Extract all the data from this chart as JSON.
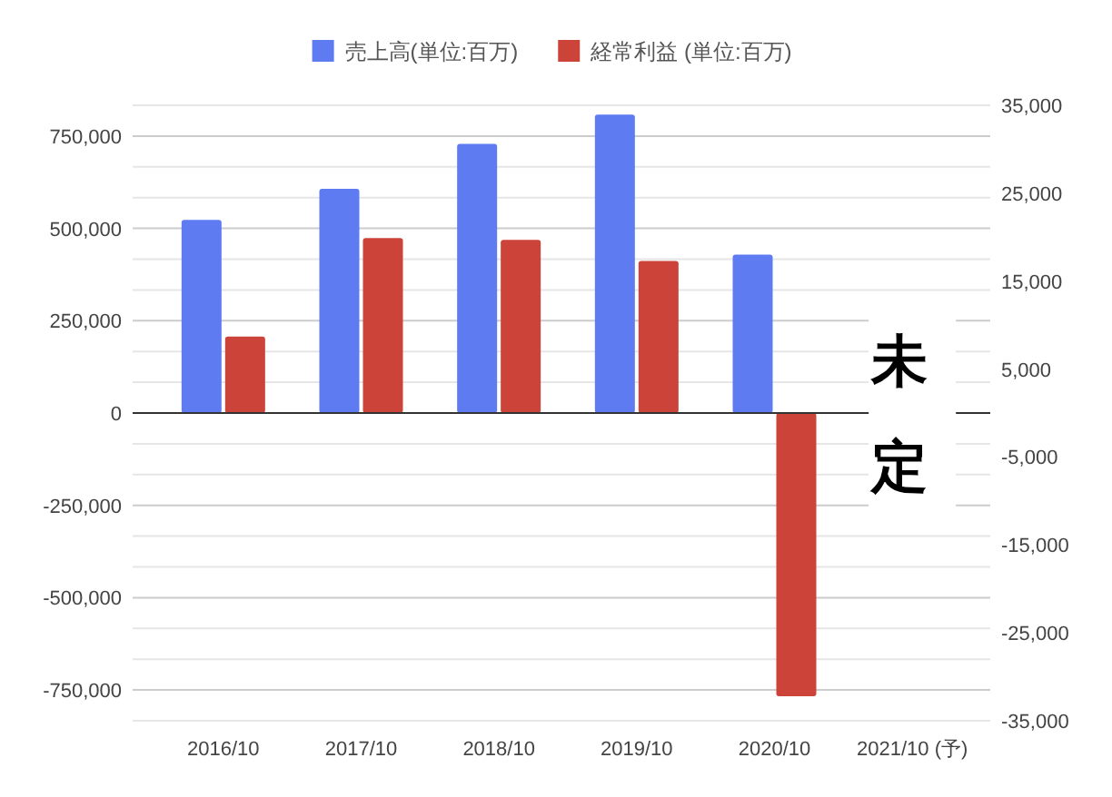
{
  "chart_data": {
    "type": "bar",
    "categories": [
      "2016/10",
      "2017/10",
      "2018/10",
      "2019/10",
      "2020/10",
      "2021/10 (予)"
    ],
    "series": [
      {
        "name": "売上高(単位:百万)",
        "color": "#5f7bf2",
        "values": [
          523000,
          607000,
          729000,
          808000,
          429000,
          null
        ]
      },
      {
        "name": "経常利益 (単位:百万)",
        "color": "#cc4339",
        "axis": "y2",
        "values": [
          8700,
          19900,
          19700,
          17300,
          -32200,
          null
        ]
      }
    ],
    "ylim": [
      -833333,
      833333
    ],
    "yticks": [
      {
        "value": -750000,
        "label": "-750,000"
      },
      {
        "value": -500000,
        "label": "-500,000"
      },
      {
        "value": -250000,
        "label": "-250,000"
      },
      0,
      {
        "value": 250000,
        "label": "250,000"
      },
      {
        "value": 500000,
        "label": "500,000"
      },
      {
        "value": 750000,
        "label": "750,000"
      }
    ],
    "y2lim": [
      -35000,
      35000
    ],
    "y2ticks": [
      {
        "value": -35000,
        "label": "-35,000"
      },
      {
        "value": -25000,
        "label": "-25,000"
      },
      {
        "value": -15000,
        "label": "-15,000"
      },
      {
        "value": -5000,
        "label": "-5,000"
      },
      {
        "value": 5000,
        "label": "5,000"
      },
      {
        "value": 15000,
        "label": "15,000"
      },
      {
        "value": 25000,
        "label": "25,000"
      },
      {
        "value": 35000,
        "label": "35,000"
      }
    ],
    "annotations": [
      "未定"
    ],
    "grid": "y",
    "legend": "top"
  }
}
